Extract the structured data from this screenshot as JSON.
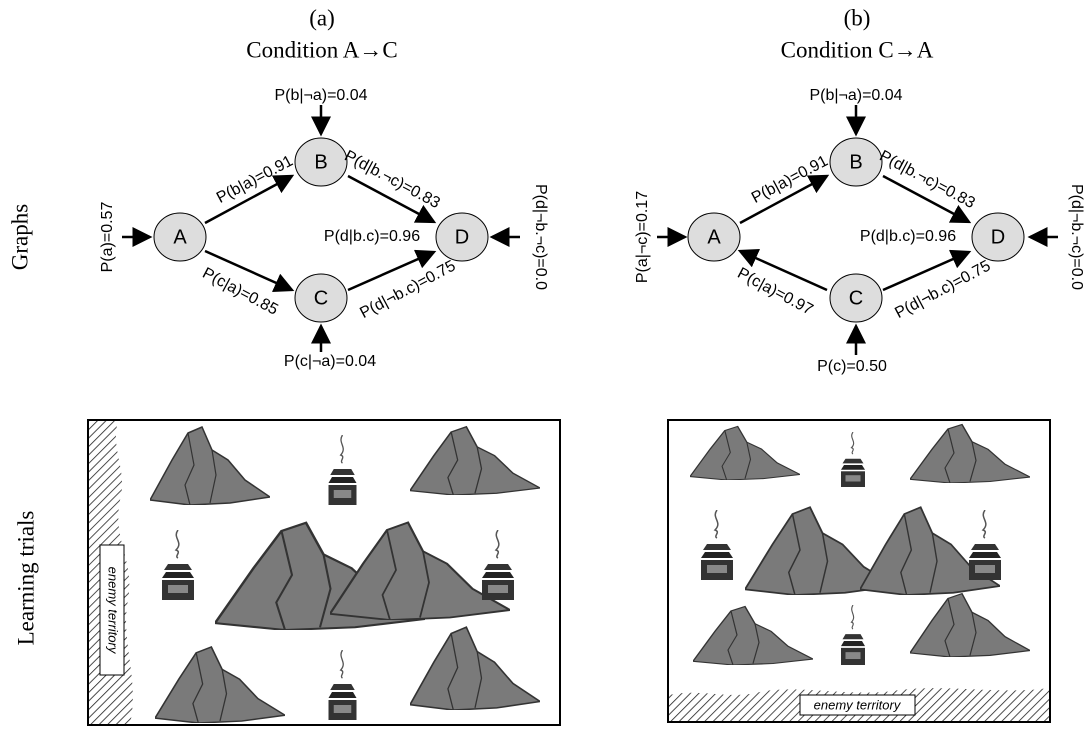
{
  "row_labels": [
    "Graphs",
    "Learning trials"
  ],
  "panels": [
    {
      "letter": "(a)",
      "title": "Condition A→C",
      "nodes": [
        "A",
        "B",
        "C",
        "D"
      ],
      "edge_labels": [
        "P(b|a)=0.91",
        "P(c|a)=0.85",
        "P(d|b.¬c)=0.83",
        "P(d|b.c)=0.96",
        "P(d|¬b.c)=0.75"
      ],
      "input_labels": [
        "P(a)=0.57",
        "P(b|¬a)=0.04",
        "P(c|¬a)=0.04",
        "P(d|¬b.¬c)=0.0"
      ],
      "territory_label": "enemy territory"
    },
    {
      "letter": "(b)",
      "title": "Condition C→A",
      "nodes": [
        "A",
        "B",
        "C",
        "D"
      ],
      "edge_labels": [
        "P(b|a)=0.91",
        "P(c|a)=0.97",
        "P(d|b.¬c)=0.83",
        "P(d|b.c)=0.96",
        "P(d|¬b.c)=0.75"
      ],
      "input_labels": [
        "P(a|¬c)=0.17",
        "P(b|¬a)=0.04",
        "P(c)=0.50",
        "P(d|¬b.¬c)=0.0"
      ],
      "territory_label": "enemy territory"
    }
  ]
}
